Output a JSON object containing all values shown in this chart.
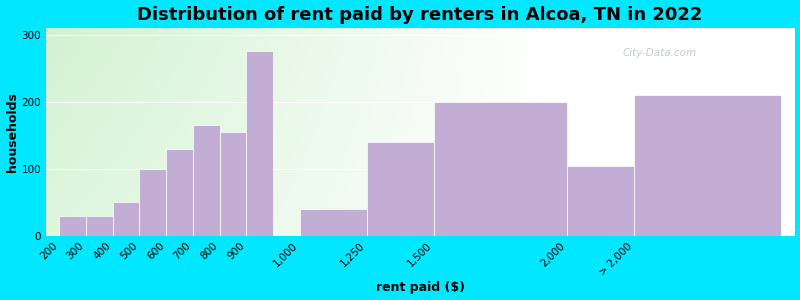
{
  "categories": [
    "200",
    "300",
    "400",
    "500",
    "600",
    "700",
    "800",
    "900",
    "1,000",
    "1,250",
    "1,500",
    "2,000",
    "> 2,000"
  ],
  "values": [
    30,
    30,
    50,
    100,
    130,
    165,
    155,
    275,
    40,
    140,
    200,
    105,
    210
  ],
  "bar_color": "#c2aed4",
  "bar_edgecolor": "#ffffff",
  "title": "Distribution of rent paid by renters in Alcoa, TN in 2022",
  "xlabel": "rent paid ($)",
  "ylabel": "households",
  "ylim": [
    0,
    310
  ],
  "yticks": [
    0,
    100,
    200,
    300
  ],
  "background_color": "#00e8ff",
  "title_fontsize": 13,
  "axis_label_fontsize": 9,
  "tick_fontsize": 7.5,
  "watermark": "City-Data.com"
}
